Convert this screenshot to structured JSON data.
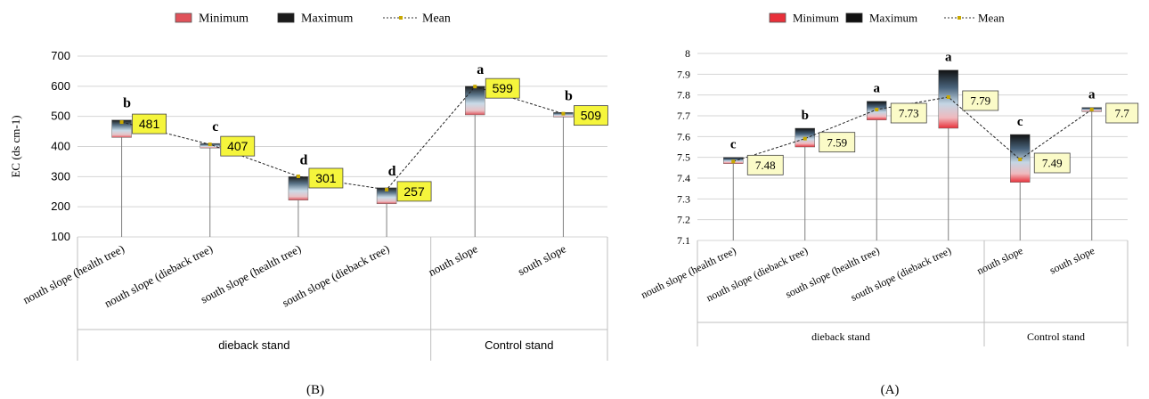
{
  "page": {
    "left_caption": "(B)",
    "right_caption": "(A)"
  },
  "chart_data": [
    {
      "type": "bar",
      "subtype": "floating-range-with-mean-line",
      "panel": "(B)",
      "ylabel": "EC (ds cm-1)",
      "ylim": [
        100,
        700
      ],
      "yticks": [
        100,
        200,
        300,
        400,
        500,
        600,
        700
      ],
      "grid": true,
      "legend": {
        "position": "top",
        "entries": [
          "Minimum",
          "Maximum",
          "Mean"
        ]
      },
      "categories": [
        "nouth slope (health tree)",
        "nouth slope (dieback  tree)",
        "south slope (health tree)",
        "south slope (dieback  tree)",
        "nouth slope",
        "south slope"
      ],
      "groups": [
        {
          "label": "dieback stand",
          "count": 4
        },
        {
          "label": "Control stand",
          "count": 2
        }
      ],
      "min": [
        430,
        395,
        222,
        210,
        505,
        498
      ],
      "max": [
        488,
        410,
        300,
        263,
        600,
        513
      ],
      "mean": [
        481,
        407,
        301,
        257,
        599,
        509
      ],
      "mean_labels": [
        "481",
        "407",
        "301",
        "257",
        "599",
        "509"
      ],
      "letters": [
        "b",
        "c",
        "d",
        "d",
        "a",
        "b"
      ],
      "colors": {
        "min": "#e0525a",
        "max": "#1b1b1b",
        "mid": "#a9c6da",
        "label_bg": "#f5f53c",
        "mean_marker": "#c8a800"
      }
    },
    {
      "type": "bar",
      "subtype": "floating-range-with-mean-line",
      "panel": "(A)",
      "ylabel": "",
      "ylim": [
        7.1,
        8.0
      ],
      "yticks": [
        "7.1",
        "7.2",
        "7.3",
        "7.4",
        "7.5",
        "7.6",
        "7.7",
        "7.8",
        "7.9",
        "8"
      ],
      "grid": true,
      "legend": {
        "position": "top",
        "entries": [
          "Minimum",
          "Maximum",
          "Mean"
        ]
      },
      "categories": [
        "nouth slope (health tree)",
        "nouth slope (dieback  tree)",
        "south slope (health tree)",
        "south slope  (dieback  tree)",
        "nouth slope",
        "south slope"
      ],
      "groups": [
        {
          "label": "dieback stand",
          "count": 4
        },
        {
          "label": "Control stand",
          "count": 2
        }
      ],
      "min": [
        7.47,
        7.55,
        7.68,
        7.64,
        7.38,
        7.72
      ],
      "max": [
        7.5,
        7.64,
        7.77,
        7.92,
        7.61,
        7.74
      ],
      "mean": [
        7.48,
        7.59,
        7.73,
        7.79,
        7.49,
        7.73
      ],
      "mean_labels": [
        "7.48",
        "7.59",
        "7.73",
        "7.79",
        "7.49",
        "7.7"
      ],
      "letters": [
        "c",
        "b",
        "a",
        "a",
        "c",
        "a"
      ],
      "colors": {
        "min": "#e8303a",
        "max": "#111111",
        "mid": "#8fb3cf",
        "label_bg": "#fbfbc8",
        "mean_marker": "#c8a800"
      }
    }
  ]
}
